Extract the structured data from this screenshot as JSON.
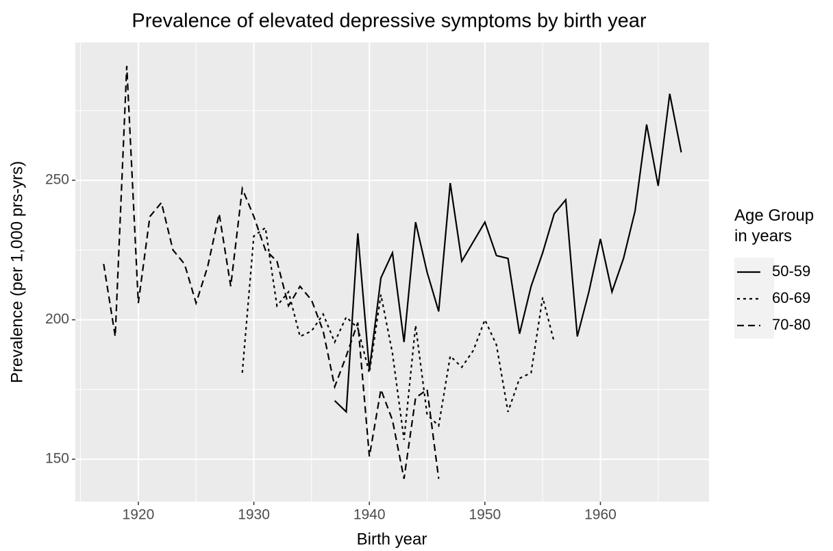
{
  "chart_data": {
    "type": "line",
    "title": "Prevalence of elevated depressive symptoms by birth year",
    "x_label": "Birth year",
    "y_label": "Prevalence (per 1,000 prs-yrs)",
    "legend_title": "Age Group\nin years",
    "xlim": [
      1914.55,
      1969.4
    ],
    "ylim": [
      134.8,
      299.4
    ],
    "xticks": [
      1920,
      1930,
      1940,
      1950,
      1960
    ],
    "yticks": [
      150,
      200,
      250
    ],
    "grid": true,
    "series": [
      {
        "name": "50-59",
        "color": "#000000",
        "linetype": "solid",
        "x": [
          1937,
          1938,
          1939,
          1940,
          1941,
          1942,
          1943,
          1944,
          1945,
          1946,
          1947,
          1948,
          1949,
          1950,
          1951,
          1952,
          1953,
          1954,
          1955,
          1956,
          1957,
          1958,
          1959,
          1960,
          1961,
          1962,
          1963,
          1964,
          1965,
          1966,
          1967
        ],
        "values": [
          171,
          167,
          231,
          182,
          215,
          224,
          192,
          235,
          217,
          203,
          249,
          221,
          228,
          235,
          223,
          222,
          195,
          212,
          224,
          238,
          243,
          194,
          210,
          229,
          210,
          222,
          239,
          270,
          248,
          281,
          260
        ]
      },
      {
        "name": "60-69",
        "color": "#000000",
        "linetype": "dotted",
        "x": [
          1929,
          1930,
          1931,
          1932,
          1933,
          1934,
          1935,
          1936,
          1937,
          1938,
          1939,
          1940,
          1941,
          1942,
          1943,
          1944,
          1945,
          1946,
          1947,
          1948,
          1949,
          1950,
          1951,
          1952,
          1953,
          1954,
          1955,
          1956
        ],
        "values": [
          181,
          230,
          233,
          205,
          210,
          194,
          196,
          202,
          192,
          201,
          197,
          181,
          209,
          188,
          157,
          198,
          166,
          162,
          187,
          183,
          189,
          200,
          191,
          167,
          179,
          181,
          208,
          192
        ]
      },
      {
        "name": "70-80",
        "color": "#000000",
        "linetype": "dashed",
        "x": [
          1917,
          1918,
          1919,
          1920,
          1921,
          1922,
          1923,
          1924,
          1925,
          1926,
          1927,
          1928,
          1929,
          1930,
          1931,
          1932,
          1933,
          1934,
          1935,
          1936,
          1937,
          1938,
          1939,
          1940,
          1941,
          1942,
          1943,
          1944,
          1945,
          1946
        ],
        "values": [
          220,
          194,
          291,
          206,
          237,
          242,
          225,
          220,
          206,
          219,
          238,
          212,
          247,
          237,
          225,
          221,
          205,
          212,
          207,
          196,
          176,
          187,
          199,
          151,
          175,
          164,
          143,
          172,
          175,
          143
        ]
      }
    ]
  }
}
